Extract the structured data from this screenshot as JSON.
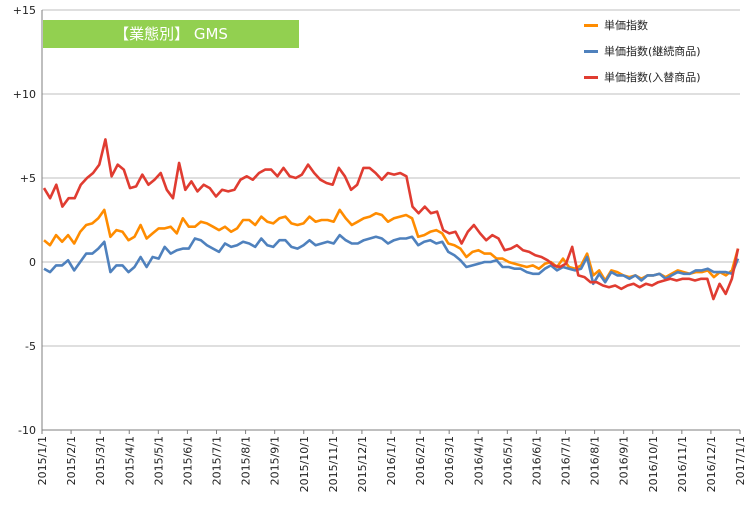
{
  "chart_data": {
    "type": "line",
    "title": "【業態別】 GMS",
    "ylim": [
      -10,
      15
    ],
    "yticks": [
      "+15",
      "+10",
      "+5",
      "0",
      "-5",
      "-10"
    ],
    "x_ticks": [
      "2015/1/1",
      "2015/2/1",
      "2015/3/1",
      "2015/4/1",
      "2015/5/1",
      "2015/6/1",
      "2015/7/1",
      "2015/8/1",
      "2015/9/1",
      "2015/10/1",
      "2015/11/1",
      "2015/12/1",
      "2016/1/1",
      "2016/2/1",
      "2016/3/1",
      "2016/4/1",
      "2016/5/1",
      "2016/6/1",
      "2016/7/1",
      "2016/8/1",
      "2016/9/1",
      "2016/10/1",
      "2016/11/1",
      "2016/12/1",
      "2017/1/1"
    ],
    "legend_position": "top-right",
    "grid": "horizontal",
    "series": [
      {
        "name": "単価指数",
        "color": "#ff8c00",
        "values": [
          1.3,
          1.0,
          1.6,
          1.2,
          1.6,
          1.1,
          1.8,
          2.2,
          2.3,
          2.6,
          3.1,
          1.5,
          1.9,
          1.8,
          1.3,
          1.5,
          2.2,
          1.4,
          1.7,
          2.0,
          2.0,
          2.1,
          1.7,
          2.6,
          2.1,
          2.1,
          2.4,
          2.3,
          2.1,
          1.9,
          2.1,
          1.8,
          2.0,
          2.5,
          2.5,
          2.2,
          2.7,
          2.4,
          2.3,
          2.6,
          2.7,
          2.3,
          2.2,
          2.3,
          2.7,
          2.4,
          2.5,
          2.5,
          2.4,
          3.1,
          2.6,
          2.2,
          2.4,
          2.6,
          2.7,
          2.9,
          2.8,
          2.4,
          2.6,
          2.7,
          2.8,
          2.6,
          1.5,
          1.6,
          1.8,
          1.9,
          1.7,
          1.1,
          1.0,
          0.8,
          0.3,
          0.6,
          0.7,
          0.5,
          0.5,
          0.2,
          0.2,
          0.0,
          -0.1,
          -0.2,
          -0.3,
          -0.2,
          -0.4,
          -0.1,
          0.0,
          -0.3,
          0.2,
          -0.3,
          -0.4,
          -0.2,
          0.5,
          -0.8,
          -0.5,
          -1.1,
          -0.5,
          -0.6,
          -0.8,
          -0.9,
          -0.8,
          -1.0,
          -0.8,
          -0.8,
          -0.7,
          -0.9,
          -0.7,
          -0.5,
          -0.6,
          -0.7,
          -0.6,
          -0.6,
          -0.5,
          -0.9,
          -0.6,
          -0.8,
          -0.5,
          0.8
        ]
      },
      {
        "name": "単価指数(継続商品)",
        "color": "#4f81bd",
        "values": [
          -0.4,
          -0.6,
          -0.2,
          -0.2,
          0.1,
          -0.5,
          0.0,
          0.5,
          0.5,
          0.8,
          1.2,
          -0.6,
          -0.2,
          -0.2,
          -0.6,
          -0.3,
          0.3,
          -0.3,
          0.3,
          0.2,
          0.9,
          0.5,
          0.7,
          0.8,
          0.8,
          1.4,
          1.3,
          1.0,
          0.8,
          0.6,
          1.1,
          0.9,
          1.0,
          1.2,
          1.1,
          0.9,
          1.4,
          1.0,
          0.9,
          1.3,
          1.3,
          0.9,
          0.8,
          1.0,
          1.3,
          1.0,
          1.1,
          1.2,
          1.1,
          1.6,
          1.3,
          1.1,
          1.1,
          1.3,
          1.4,
          1.5,
          1.4,
          1.1,
          1.3,
          1.4,
          1.4,
          1.5,
          1.0,
          1.2,
          1.3,
          1.1,
          1.2,
          0.6,
          0.4,
          0.1,
          -0.3,
          -0.2,
          -0.1,
          0.0,
          0.0,
          0.1,
          -0.3,
          -0.3,
          -0.4,
          -0.4,
          -0.6,
          -0.7,
          -0.7,
          -0.4,
          -0.2,
          -0.5,
          -0.3,
          -0.4,
          -0.5,
          -0.4,
          0.3,
          -1.3,
          -0.7,
          -1.2,
          -0.6,
          -0.8,
          -0.8,
          -1.0,
          -0.8,
          -1.1,
          -0.8,
          -0.8,
          -0.7,
          -1.0,
          -0.8,
          -0.6,
          -0.7,
          -0.7,
          -0.5,
          -0.5,
          -0.4,
          -0.6,
          -0.6,
          -0.6,
          -0.7,
          0.2
        ]
      },
      {
        "name": "単価指数(入替商品)",
        "color": "#e03c31",
        "values": [
          4.4,
          3.8,
          4.6,
          3.3,
          3.8,
          3.8,
          4.6,
          5.0,
          5.3,
          5.8,
          7.3,
          5.1,
          5.8,
          5.5,
          4.4,
          4.5,
          5.2,
          4.6,
          4.9,
          5.3,
          4.3,
          3.8,
          5.9,
          4.3,
          4.8,
          4.2,
          4.6,
          4.4,
          3.9,
          4.3,
          4.2,
          4.3,
          4.9,
          5.1,
          4.9,
          5.3,
          5.5,
          5.5,
          5.1,
          5.6,
          5.1,
          5.0,
          5.2,
          5.8,
          5.3,
          4.9,
          4.7,
          4.6,
          5.6,
          5.1,
          4.3,
          4.6,
          5.6,
          5.6,
          5.3,
          4.9,
          5.3,
          5.2,
          5.3,
          5.1,
          3.3,
          2.9,
          3.3,
          2.9,
          3.0,
          1.9,
          1.7,
          1.8,
          1.1,
          1.8,
          2.2,
          1.7,
          1.3,
          1.6,
          1.4,
          0.7,
          0.8,
          1.0,
          0.7,
          0.6,
          0.4,
          0.3,
          0.1,
          -0.2,
          -0.3,
          -0.1,
          0.9,
          -0.8,
          -0.9,
          -1.2,
          -1.2,
          -1.4,
          -1.5,
          -1.4,
          -1.6,
          -1.4,
          -1.3,
          -1.5,
          -1.3,
          -1.4,
          -1.2,
          -1.1,
          -1.0,
          -1.1,
          -1.0,
          -1.0,
          -1.1,
          -1.0,
          -1.0,
          -2.2,
          -1.3,
          -1.9,
          -1.0,
          0.8
        ]
      }
    ]
  }
}
